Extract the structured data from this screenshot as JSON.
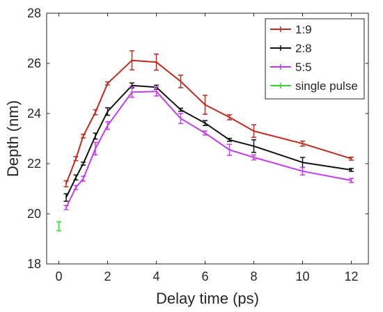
{
  "chart_data": {
    "type": "line",
    "xlabel": "Delay time (ps)",
    "ylabel": "Depth (nm)",
    "xlim": [
      -0.5,
      12.7
    ],
    "ylim": [
      18,
      28
    ],
    "xticks": [
      0,
      2,
      4,
      6,
      8,
      10,
      12
    ],
    "yticks": [
      18,
      20,
      22,
      24,
      26,
      28
    ],
    "xtick_labels": [
      "0",
      "2",
      "4",
      "6",
      "8",
      "10",
      "12"
    ],
    "ytick_labels": [
      "18",
      "20",
      "22",
      "24",
      "26",
      "28"
    ],
    "grid": false,
    "legend_position": "top-right",
    "error_bars": true,
    "series": [
      {
        "name": "1:9",
        "color": "#c1281e",
        "x": [
          0.3,
          0.7,
          1,
          1.5,
          2,
          3,
          4,
          5,
          6,
          7,
          8,
          10,
          12
        ],
        "y": [
          21.2,
          22.2,
          23.1,
          24.05,
          25.2,
          26.12,
          26.05,
          25.28,
          24.35,
          23.85,
          23.3,
          22.8,
          22.2
        ],
        "err": [
          0.12,
          0.08,
          0.07,
          0.1,
          0.06,
          0.38,
          0.32,
          0.25,
          0.38,
          0.1,
          0.25,
          0.1,
          0.06
        ]
      },
      {
        "name": "2:8",
        "color": "#111111",
        "x": [
          0.3,
          0.7,
          1,
          1.5,
          2,
          3,
          4,
          5,
          6,
          7,
          8,
          10,
          12
        ],
        "y": [
          20.65,
          21.45,
          22.0,
          23.1,
          24.08,
          25.12,
          25.05,
          24.15,
          23.62,
          22.95,
          22.7,
          22.05,
          21.75
        ],
        "err": [
          0.15,
          0.1,
          0.06,
          0.12,
          0.15,
          0.1,
          0.08,
          0.06,
          0.1,
          0.06,
          0.25,
          0.2,
          0.06
        ]
      },
      {
        "name": "5:5",
        "color": "#c23bf0",
        "x": [
          0.3,
          0.7,
          1,
          1.5,
          2,
          3,
          4,
          5,
          6,
          7,
          8,
          10,
          12
        ],
        "y": [
          20.25,
          21.05,
          21.4,
          22.6,
          23.52,
          24.85,
          24.88,
          23.8,
          23.22,
          22.55,
          22.25,
          21.7,
          21.33
        ],
        "err": [
          0.08,
          0.08,
          0.1,
          0.25,
          0.15,
          0.2,
          0.18,
          0.2,
          0.08,
          0.22,
          0.1,
          0.15,
          0.08
        ]
      },
      {
        "name": "single pulse",
        "color": "#2ed62e",
        "x": [
          0
        ],
        "y": [
          19.5
        ],
        "err": [
          0.18
        ]
      }
    ]
  }
}
